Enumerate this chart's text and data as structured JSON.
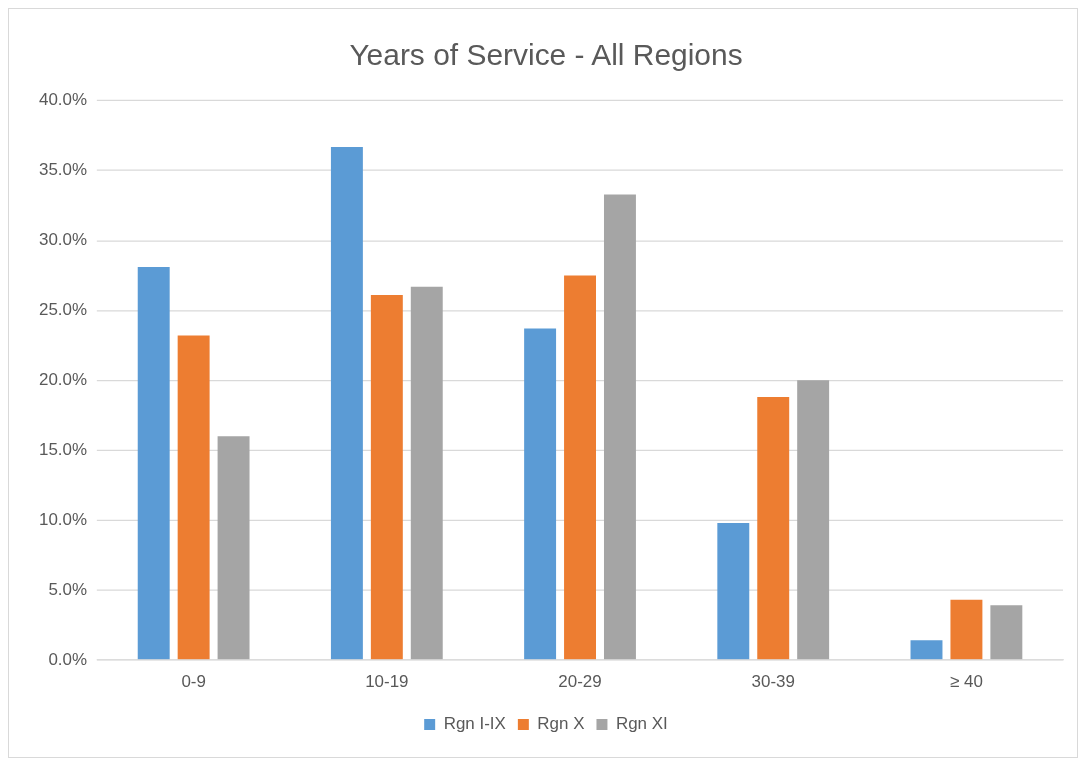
{
  "chart_data": {
    "type": "bar",
    "title": "Years of Service - All Regions",
    "categories": [
      "0-9",
      "10-19",
      "20-29",
      "30-39",
      "≥ 40"
    ],
    "series": [
      {
        "name": "Rgn I-IX",
        "color": "#5b9bd5",
        "values": [
          28.1,
          36.7,
          23.7,
          9.8,
          1.4
        ]
      },
      {
        "name": "Rgn X",
        "color": "#ed7d31",
        "values": [
          23.2,
          26.1,
          27.5,
          18.8,
          4.3
        ]
      },
      {
        "name": "Rgn XI",
        "color": "#a5a5a5",
        "values": [
          16.0,
          26.7,
          33.3,
          20.0,
          3.9
        ]
      }
    ],
    "ylim": [
      0,
      40
    ],
    "yticks": [
      {
        "value": 0,
        "label": "0.0%"
      },
      {
        "value": 5,
        "label": "5.0%"
      },
      {
        "value": 10,
        "label": "10.0%"
      },
      {
        "value": 15,
        "label": "15.0%"
      },
      {
        "value": 20,
        "label": "20.0%"
      },
      {
        "value": 25,
        "label": "25.0%"
      },
      {
        "value": 30,
        "label": "30.0%"
      },
      {
        "value": 35,
        "label": "35.0%"
      },
      {
        "value": 40,
        "label": "40.0%"
      }
    ],
    "grid": "y",
    "legend": "bottom"
  }
}
